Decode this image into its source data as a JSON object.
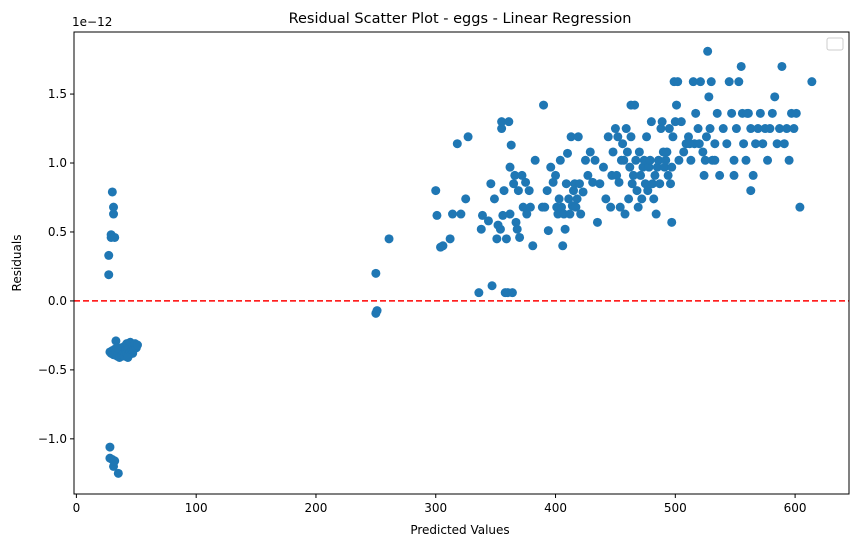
{
  "chart_data": {
    "type": "scatter",
    "title": "Residual Scatter Plot - eggs  - Linear Regression",
    "xlabel": "Predicted Values",
    "ylabel": "Residuals",
    "offset_label": "1e−12",
    "xlim": [
      -2,
      645
    ],
    "ylim": [
      -1.4,
      1.95
    ],
    "x_ticks": [
      0,
      100,
      200,
      300,
      400,
      500,
      600
    ],
    "x_tick_labels": [
      "0",
      "100",
      "200",
      "300",
      "400",
      "500",
      "600"
    ],
    "y_ticks": [
      -1.0,
      -0.5,
      0.0,
      0.5,
      1.0,
      1.5
    ],
    "y_tick_labels": [
      "−1.0",
      "−0.5",
      "0.0",
      "0.5",
      "1.0",
      "1.5"
    ],
    "reference_line": {
      "y": 0,
      "color": "#ff0000",
      "style": "dashed"
    },
    "grid": false,
    "legend": {
      "placement": "top-right",
      "entries": []
    },
    "marker_color": "#1f77b4",
    "points": [
      [
        27,
        0.33
      ],
      [
        27,
        0.19
      ],
      [
        28,
        -1.06
      ],
      [
        28,
        -1.14
      ],
      [
        29,
        0.46
      ],
      [
        29,
        0.48
      ],
      [
        30,
        -1.15
      ],
      [
        30,
        0.79
      ],
      [
        31,
        0.68
      ],
      [
        31,
        0.63
      ],
      [
        31,
        -1.2
      ],
      [
        32,
        0.46
      ],
      [
        32,
        -1.16
      ],
      [
        35,
        -1.25
      ],
      [
        28,
        -0.37
      ],
      [
        29,
        -0.38
      ],
      [
        30,
        -0.36
      ],
      [
        31,
        -0.39
      ],
      [
        32,
        -0.35
      ],
      [
        33,
        -0.37
      ],
      [
        33,
        -0.29
      ],
      [
        34,
        -0.4
      ],
      [
        35,
        -0.38
      ],
      [
        36,
        -0.36
      ],
      [
        36,
        -0.41
      ],
      [
        37,
        -0.34
      ],
      [
        38,
        -0.39
      ],
      [
        38,
        -0.35
      ],
      [
        39,
        -0.37
      ],
      [
        40,
        -0.4
      ],
      [
        40,
        -0.33
      ],
      [
        41,
        -0.36
      ],
      [
        42,
        -0.38
      ],
      [
        42,
        -0.31
      ],
      [
        43,
        -0.35
      ],
      [
        44,
        -0.39
      ],
      [
        44,
        -0.34
      ],
      [
        45,
        -0.37
      ],
      [
        45,
        -0.3
      ],
      [
        46,
        -0.36
      ],
      [
        47,
        -0.38
      ],
      [
        47,
        -0.33
      ],
      [
        48,
        -0.35
      ],
      [
        49,
        -0.31
      ],
      [
        50,
        -0.34
      ],
      [
        51,
        -0.32
      ],
      [
        34,
        -0.34
      ],
      [
        43,
        -0.41
      ],
      [
        250,
        0.2
      ],
      [
        250,
        -0.09
      ],
      [
        251,
        -0.07
      ],
      [
        261,
        0.45
      ],
      [
        300,
        0.8
      ],
      [
        301,
        0.62
      ],
      [
        304,
        0.39
      ],
      [
        306,
        0.4
      ],
      [
        312,
        0.45
      ],
      [
        314,
        0.63
      ],
      [
        318,
        1.14
      ],
      [
        321,
        0.63
      ],
      [
        325,
        0.74
      ],
      [
        327,
        1.19
      ],
      [
        336,
        0.06
      ],
      [
        338,
        0.52
      ],
      [
        339,
        0.62
      ],
      [
        344,
        0.58
      ],
      [
        346,
        0.85
      ],
      [
        347,
        0.11
      ],
      [
        349,
        0.74
      ],
      [
        351,
        0.45
      ],
      [
        352,
        0.55
      ],
      [
        354,
        0.52
      ],
      [
        355,
        1.25
      ],
      [
        355,
        1.3
      ],
      [
        356,
        0.62
      ],
      [
        357,
        0.8
      ],
      [
        358,
        0.06
      ],
      [
        359,
        0.45
      ],
      [
        360,
        0.06
      ],
      [
        361,
        1.3
      ],
      [
        362,
        0.97
      ],
      [
        362,
        0.63
      ],
      [
        363,
        1.13
      ],
      [
        364,
        0.06
      ],
      [
        365,
        0.85
      ],
      [
        366,
        0.91
      ],
      [
        367,
        0.57
      ],
      [
        368,
        0.52
      ],
      [
        369,
        0.8
      ],
      [
        370,
        0.46
      ],
      [
        372,
        0.91
      ],
      [
        373,
        0.68
      ],
      [
        375,
        0.86
      ],
      [
        376,
        0.63
      ],
      [
        378,
        0.8
      ],
      [
        379,
        0.68
      ],
      [
        381,
        0.4
      ],
      [
        383,
        1.02
      ],
      [
        389,
        0.68
      ],
      [
        390,
        1.42
      ],
      [
        391,
        0.68
      ],
      [
        393,
        0.8
      ],
      [
        394,
        0.51
      ],
      [
        396,
        0.97
      ],
      [
        398,
        0.86
      ],
      [
        400,
        0.91
      ],
      [
        401,
        0.68
      ],
      [
        402,
        0.63
      ],
      [
        403,
        0.74
      ],
      [
        404,
        1.02
      ],
      [
        405,
        0.68
      ],
      [
        406,
        0.4
      ],
      [
        407,
        0.63
      ],
      [
        408,
        0.52
      ],
      [
        409,
        0.85
      ],
      [
        410,
        1.07
      ],
      [
        411,
        0.74
      ],
      [
        412,
        0.63
      ],
      [
        413,
        1.19
      ],
      [
        414,
        0.69
      ],
      [
        415,
        0.8
      ],
      [
        416,
        0.85
      ],
      [
        417,
        0.68
      ],
      [
        418,
        0.74
      ],
      [
        419,
        1.19
      ],
      [
        420,
        0.85
      ],
      [
        421,
        0.63
      ],
      [
        423,
        0.79
      ],
      [
        425,
        1.02
      ],
      [
        427,
        0.91
      ],
      [
        429,
        1.08
      ],
      [
        431,
        0.86
      ],
      [
        433,
        1.02
      ],
      [
        435,
        0.57
      ],
      [
        437,
        0.85
      ],
      [
        440,
        0.97
      ],
      [
        442,
        0.74
      ],
      [
        444,
        1.19
      ],
      [
        446,
        0.68
      ],
      [
        447,
        0.91
      ],
      [
        448,
        1.08
      ],
      [
        450,
        1.25
      ],
      [
        451,
        0.91
      ],
      [
        452,
        1.19
      ],
      [
        453,
        0.86
      ],
      [
        454,
        0.68
      ],
      [
        455,
        1.02
      ],
      [
        456,
        1.14
      ],
      [
        457,
        1.02
      ],
      [
        458,
        0.63
      ],
      [
        459,
        1.25
      ],
      [
        460,
        1.08
      ],
      [
        461,
        0.74
      ],
      [
        462,
        0.97
      ],
      [
        463,
        1.42
      ],
      [
        463,
        1.19
      ],
      [
        464,
        0.85
      ],
      [
        465,
        0.91
      ],
      [
        466,
        1.42
      ],
      [
        467,
        1.02
      ],
      [
        468,
        0.8
      ],
      [
        469,
        0.68
      ],
      [
        470,
        1.08
      ],
      [
        471,
        0.91
      ],
      [
        472,
        0.74
      ],
      [
        473,
        0.97
      ],
      [
        474,
        1.02
      ],
      [
        475,
        0.85
      ],
      [
        476,
        1.19
      ],
      [
        477,
        0.8
      ],
      [
        478,
        0.97
      ],
      [
        479,
        1.02
      ],
      [
        480,
        1.3
      ],
      [
        481,
        0.85
      ],
      [
        482,
        0.74
      ],
      [
        483,
        0.91
      ],
      [
        484,
        0.63
      ],
      [
        485,
        0.97
      ],
      [
        486,
        1.02
      ],
      [
        487,
        0.85
      ],
      [
        488,
        1.25
      ],
      [
        489,
        1.3
      ],
      [
        490,
        1.08
      ],
      [
        491,
        0.97
      ],
      [
        492,
        1.02
      ],
      [
        493,
        1.08
      ],
      [
        494,
        0.91
      ],
      [
        495,
        1.25
      ],
      [
        496,
        0.85
      ],
      [
        497,
        0.97
      ],
      [
        498,
        1.19
      ],
      [
        499,
        1.59
      ],
      [
        500,
        1.3
      ],
      [
        501,
        1.42
      ],
      [
        503,
        1.02
      ],
      [
        505,
        1.3
      ],
      [
        507,
        1.08
      ],
      [
        509,
        1.14
      ],
      [
        511,
        1.19
      ],
      [
        513,
        1.02
      ],
      [
        515,
        1.59
      ],
      [
        517,
        1.36
      ],
      [
        519,
        1.25
      ],
      [
        521,
        1.59
      ],
      [
        523,
        1.08
      ],
      [
        525,
        1.02
      ],
      [
        526,
        1.19
      ],
      [
        527,
        1.81
      ],
      [
        528,
        1.48
      ],
      [
        529,
        1.25
      ],
      [
        530,
        1.59
      ],
      [
        531,
        1.02
      ],
      [
        533,
        1.14
      ],
      [
        535,
        1.36
      ],
      [
        537,
        0.91
      ],
      [
        540,
        1.25
      ],
      [
        543,
        1.14
      ],
      [
        545,
        1.59
      ],
      [
        547,
        1.36
      ],
      [
        549,
        1.02
      ],
      [
        551,
        1.25
      ],
      [
        553,
        1.59
      ],
      [
        555,
        1.7
      ],
      [
        556,
        1.36
      ],
      [
        557,
        1.14
      ],
      [
        559,
        1.02
      ],
      [
        561,
        1.36
      ],
      [
        563,
        1.25
      ],
      [
        565,
        0.91
      ],
      [
        567,
        1.14
      ],
      [
        569,
        1.25
      ],
      [
        571,
        1.36
      ],
      [
        573,
        1.14
      ],
      [
        575,
        1.25
      ],
      [
        577,
        1.02
      ],
      [
        579,
        1.25
      ],
      [
        581,
        1.36
      ],
      [
        583,
        1.48
      ],
      [
        585,
        1.14
      ],
      [
        587,
        1.25
      ],
      [
        589,
        1.7
      ],
      [
        591,
        1.14
      ],
      [
        593,
        1.25
      ],
      [
        595,
        1.02
      ],
      [
        597,
        1.36
      ],
      [
        599,
        1.25
      ],
      [
        601,
        1.36
      ],
      [
        604,
        0.68
      ],
      [
        614,
        1.59
      ],
      [
        549,
        0.91
      ],
      [
        563,
        0.8
      ],
      [
        560,
        1.36
      ],
      [
        524,
        0.91
      ],
      [
        533,
        1.02
      ],
      [
        516,
        1.14
      ],
      [
        512,
        1.14
      ],
      [
        497,
        0.57
      ],
      [
        502,
        1.59
      ],
      [
        520,
        1.14
      ]
    ]
  }
}
